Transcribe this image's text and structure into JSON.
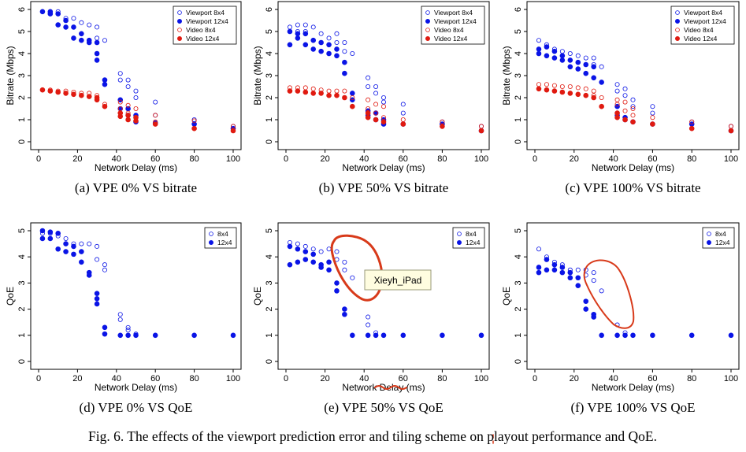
{
  "figure_caption": "Fig. 6.  The effects of the viewport prediction error and tiling scheme on playout performance and QoE.",
  "annotation_note": "Xieyh_iPad",
  "colors": {
    "viewport": "#0a14e6",
    "video": "#e01a10",
    "ink": "#d83a1a",
    "note_fill": "#fffde0"
  },
  "chart_data": [
    {
      "type": "scatter",
      "caption": "(a) VPE 0% VS bitrate",
      "xlabel": "Network Delay (ms)",
      "ylabel": "Bitrate (Mbps)",
      "xlim": [
        0,
        100
      ],
      "ylim": [
        0,
        6
      ],
      "xticks": [
        0,
        20,
        40,
        60,
        80,
        100
      ],
      "yticks": [
        0,
        1,
        2,
        3,
        4,
        5,
        6
      ],
      "legend_position": "top-right",
      "series": [
        {
          "name": "Viewport 8x4",
          "marker": "open",
          "color": "viewport",
          "x": [
            2,
            6,
            10,
            14,
            18,
            22,
            26,
            30,
            30,
            34,
            42,
            42,
            46,
            46,
            50,
            50,
            60,
            60,
            80,
            100
          ],
          "y": [
            5.9,
            5.85,
            5.9,
            5.6,
            5.6,
            5.4,
            5.3,
            5.2,
            4.7,
            4.6,
            3.1,
            2.8,
            2.8,
            2.5,
            2.3,
            2.0,
            1.8,
            1.2,
            1.0,
            0.7
          ]
        },
        {
          "name": "Viewport 12x4",
          "marker": "filled",
          "color": "viewport",
          "x": [
            2,
            6,
            6,
            10,
            10,
            14,
            14,
            18,
            18,
            22,
            22,
            26,
            26,
            30,
            30,
            30,
            34,
            34,
            42,
            42,
            46,
            46,
            50,
            50,
            60,
            80,
            100
          ],
          "y": [
            5.9,
            5.9,
            5.8,
            5.8,
            5.3,
            5.5,
            5.2,
            5.2,
            4.7,
            4.9,
            4.6,
            4.6,
            4.5,
            4.5,
            4.0,
            3.7,
            2.8,
            2.6,
            1.9,
            1.5,
            1.5,
            1.2,
            1.2,
            0.9,
            0.85,
            0.8,
            0.6
          ]
        },
        {
          "name": "Video 8x4",
          "marker": "open",
          "color": "video",
          "x": [
            2,
            6,
            10,
            14,
            18,
            22,
            26,
            30,
            30,
            34,
            42,
            42,
            46,
            46,
            50,
            50,
            60,
            60,
            80,
            100
          ],
          "y": [
            2.35,
            2.35,
            2.3,
            2.3,
            2.25,
            2.2,
            2.2,
            2.1,
            2.0,
            1.7,
            1.8,
            1.5,
            1.65,
            1.3,
            1.5,
            1.1,
            1.2,
            0.9,
            0.95,
            0.7
          ]
        },
        {
          "name": "Video 12x4",
          "marker": "filled",
          "color": "video",
          "x": [
            2,
            6,
            10,
            14,
            18,
            22,
            26,
            30,
            30,
            34,
            42,
            42,
            46,
            46,
            50,
            50,
            60,
            80,
            100
          ],
          "y": [
            2.35,
            2.3,
            2.25,
            2.2,
            2.15,
            2.1,
            2.05,
            2.0,
            1.9,
            1.6,
            1.3,
            1.15,
            1.2,
            1.0,
            1.1,
            0.95,
            0.8,
            0.6,
            0.5
          ]
        }
      ]
    },
    {
      "type": "scatter",
      "caption": "(b) VPE 50% VS bitrate",
      "xlabel": "Network Delay (ms)",
      "ylabel": "Bitrate (Mbps)",
      "xlim": [
        0,
        100
      ],
      "ylim": [
        0,
        6
      ],
      "xticks": [
        0,
        20,
        40,
        60,
        80,
        100
      ],
      "yticks": [
        0,
        1,
        2,
        3,
        4,
        5,
        6
      ],
      "legend_position": "top-right",
      "series": [
        {
          "name": "Viewport 8x4",
          "marker": "open",
          "color": "viewport",
          "x": [
            2,
            6,
            6,
            10,
            10,
            14,
            18,
            22,
            26,
            26,
            30,
            30,
            34,
            42,
            42,
            46,
            46,
            50,
            50,
            60,
            60,
            80,
            100
          ],
          "y": [
            5.2,
            5.3,
            5.0,
            5.3,
            5.0,
            5.2,
            4.9,
            4.7,
            4.9,
            4.5,
            4.5,
            4.1,
            4.0,
            2.9,
            2.5,
            2.5,
            2.2,
            2.0,
            1.8,
            1.7,
            1.3,
            0.9,
            0.7
          ]
        },
        {
          "name": "Viewport 12x4",
          "marker": "filled",
          "color": "viewport",
          "x": [
            2,
            2,
            6,
            6,
            10,
            10,
            14,
            14,
            18,
            18,
            22,
            22,
            26,
            26,
            30,
            30,
            34,
            34,
            42,
            42,
            46,
            46,
            50,
            50,
            60,
            80,
            100
          ],
          "y": [
            5.0,
            4.4,
            4.9,
            4.7,
            4.9,
            4.4,
            4.6,
            4.2,
            4.5,
            4.1,
            4.4,
            4.0,
            4.2,
            3.9,
            3.6,
            3.1,
            2.2,
            1.9,
            1.4,
            1.2,
            1.3,
            1.0,
            1.0,
            0.8,
            0.8,
            0.8,
            0.5
          ]
        },
        {
          "name": "Video 8x4",
          "marker": "open",
          "color": "video",
          "x": [
            2,
            6,
            10,
            14,
            18,
            22,
            26,
            30,
            34,
            42,
            42,
            46,
            46,
            50,
            50,
            60,
            80,
            100
          ],
          "y": [
            2.45,
            2.45,
            2.45,
            2.4,
            2.35,
            2.3,
            2.3,
            2.3,
            2.0,
            1.9,
            1.5,
            1.7,
            1.3,
            1.6,
            1.1,
            1.0,
            0.9,
            0.7
          ]
        },
        {
          "name": "Video 12x4",
          "marker": "filled",
          "color": "video",
          "x": [
            2,
            6,
            10,
            14,
            18,
            22,
            26,
            30,
            34,
            42,
            42,
            46,
            50,
            60,
            80,
            100
          ],
          "y": [
            2.3,
            2.3,
            2.25,
            2.2,
            2.2,
            2.1,
            2.1,
            2.0,
            1.6,
            1.3,
            1.1,
            1.0,
            0.9,
            0.8,
            0.7,
            0.5
          ]
        }
      ]
    },
    {
      "type": "scatter",
      "caption": "(c) VPE 100% VS bitrate",
      "xlabel": "Network Delay (ms)",
      "ylabel": "Bitrate (Mbps)",
      "xlim": [
        0,
        100
      ],
      "ylim": [
        0,
        6
      ],
      "xticks": [
        0,
        20,
        40,
        60,
        80,
        100
      ],
      "yticks": [
        0,
        1,
        2,
        3,
        4,
        5,
        6
      ],
      "legend_position": "top-right",
      "series": [
        {
          "name": "Viewport 8x4",
          "marker": "open",
          "color": "viewport",
          "x": [
            2,
            6,
            10,
            14,
            18,
            22,
            26,
            30,
            30,
            34,
            42,
            42,
            46,
            46,
            50,
            50,
            60,
            60,
            80,
            100
          ],
          "y": [
            4.6,
            4.4,
            4.2,
            4.1,
            4.0,
            3.9,
            3.8,
            3.8,
            3.5,
            3.4,
            2.6,
            2.3,
            2.4,
            2.1,
            1.9,
            1.6,
            1.6,
            1.3,
            0.9,
            0.7
          ]
        },
        {
          "name": "Viewport 12x4",
          "marker": "filled",
          "color": "viewport",
          "x": [
            2,
            2,
            6,
            6,
            10,
            10,
            14,
            14,
            18,
            18,
            22,
            22,
            26,
            26,
            30,
            30,
            34,
            42,
            42,
            46,
            46,
            50,
            60,
            80,
            100
          ],
          "y": [
            4.2,
            4.0,
            4.3,
            3.9,
            4.1,
            3.8,
            3.9,
            3.7,
            3.7,
            3.4,
            3.6,
            3.3,
            3.5,
            3.1,
            3.4,
            2.9,
            2.7,
            1.6,
            1.2,
            1.1,
            1.0,
            0.9,
            0.8,
            0.8,
            0.5
          ]
        },
        {
          "name": "Video 8x4",
          "marker": "open",
          "color": "video",
          "x": [
            2,
            6,
            10,
            14,
            18,
            22,
            26,
            30,
            30,
            34,
            42,
            42,
            46,
            46,
            50,
            50,
            60,
            80,
            100
          ],
          "y": [
            2.6,
            2.6,
            2.55,
            2.5,
            2.5,
            2.45,
            2.4,
            2.3,
            2.1,
            2.0,
            1.9,
            1.7,
            1.8,
            1.4,
            1.5,
            1.2,
            1.1,
            0.9,
            0.7
          ]
        },
        {
          "name": "Video 12x4",
          "marker": "filled",
          "color": "video",
          "x": [
            2,
            6,
            10,
            14,
            18,
            22,
            26,
            30,
            34,
            42,
            42,
            46,
            50,
            60,
            80,
            100
          ],
          "y": [
            2.4,
            2.35,
            2.3,
            2.25,
            2.2,
            2.15,
            2.1,
            2.0,
            1.6,
            1.3,
            1.1,
            1.0,
            0.9,
            0.8,
            0.6,
            0.5
          ]
        }
      ]
    },
    {
      "type": "scatter",
      "caption": "(d) VPE 0% VS QoE",
      "xlabel": "Network Delay (ms)",
      "ylabel": "QoE",
      "xlim": [
        0,
        100
      ],
      "ylim": [
        0,
        5
      ],
      "xticks": [
        0,
        20,
        40,
        60,
        80,
        100
      ],
      "yticks": [
        0,
        1,
        2,
        3,
        4,
        5
      ],
      "legend_position": "top-right",
      "series": [
        {
          "name": "8x4",
          "marker": "open",
          "color": "viewport",
          "x": [
            2,
            6,
            10,
            14,
            18,
            22,
            26,
            30,
            30,
            34,
            34,
            42,
            42,
            46,
            46,
            50,
            60,
            80,
            100
          ],
          "y": [
            4.9,
            4.9,
            4.8,
            4.7,
            4.5,
            4.5,
            4.5,
            4.4,
            3.9,
            3.7,
            3.5,
            1.8,
            1.6,
            1.3,
            1.2,
            1.05,
            1.0,
            1.0,
            1.0
          ]
        },
        {
          "name": "12x4",
          "marker": "filled",
          "color": "viewport",
          "x": [
            2,
            2,
            6,
            6,
            10,
            10,
            14,
            14,
            18,
            18,
            22,
            22,
            26,
            26,
            30,
            30,
            30,
            34,
            34,
            42,
            46,
            50,
            60,
            80,
            100
          ],
          "y": [
            5.0,
            4.7,
            4.95,
            4.7,
            4.9,
            4.3,
            4.5,
            4.2,
            4.4,
            4.1,
            4.2,
            3.8,
            3.4,
            3.3,
            2.6,
            2.4,
            2.2,
            1.3,
            1.05,
            1.0,
            1.0,
            1.0,
            1.0,
            1.0,
            1.0
          ]
        }
      ]
    },
    {
      "type": "scatter",
      "caption": "(e) VPE 50% VS QoE",
      "xlabel": "Network Delay (ms)",
      "ylabel": "QoE",
      "xlim": [
        0,
        100
      ],
      "ylim": [
        0,
        5
      ],
      "xticks": [
        0,
        20,
        40,
        60,
        80,
        100
      ],
      "yticks": [
        0,
        1,
        2,
        3,
        4,
        5
      ],
      "legend_position": "top-right",
      "series": [
        {
          "name": "8x4",
          "marker": "open",
          "color": "viewport",
          "x": [
            2,
            6,
            10,
            14,
            18,
            22,
            26,
            26,
            30,
            30,
            34,
            42,
            42,
            46,
            50,
            60,
            80,
            100
          ],
          "y": [
            4.55,
            4.5,
            4.4,
            4.3,
            4.2,
            4.3,
            4.2,
            3.9,
            3.8,
            3.5,
            3.2,
            1.7,
            1.4,
            1.1,
            1.0,
            1.0,
            1.0,
            1.0
          ]
        },
        {
          "name": "12x4",
          "marker": "filled",
          "color": "viewport",
          "x": [
            2,
            2,
            6,
            6,
            10,
            10,
            14,
            14,
            18,
            18,
            22,
            22,
            26,
            26,
            30,
            30,
            34,
            42,
            46,
            50,
            60,
            80,
            100
          ],
          "y": [
            4.4,
            3.7,
            4.3,
            3.8,
            4.2,
            3.9,
            4.1,
            3.8,
            3.7,
            3.6,
            3.8,
            3.5,
            3.0,
            2.7,
            2.0,
            1.8,
            1.0,
            1.0,
            1.0,
            1.0,
            1.0,
            1.0,
            1.0
          ]
        }
      ]
    },
    {
      "type": "scatter",
      "caption": "(f) VPE 100% VS QoE",
      "xlabel": "Network Delay (ms)",
      "ylabel": "QoE",
      "xlim": [
        0,
        100
      ],
      "ylim": [
        0,
        5
      ],
      "xticks": [
        0,
        20,
        40,
        60,
        80,
        100
      ],
      "yticks": [
        0,
        1,
        2,
        3,
        4,
        5
      ],
      "legend_position": "top-right",
      "series": [
        {
          "name": "8x4",
          "marker": "open",
          "color": "viewport",
          "x": [
            2,
            6,
            10,
            14,
            18,
            22,
            26,
            26,
            30,
            30,
            34,
            42,
            46,
            50,
            60,
            80,
            100
          ],
          "y": [
            4.3,
            4.0,
            3.8,
            3.7,
            3.5,
            3.5,
            3.5,
            3.3,
            3.4,
            3.1,
            2.7,
            1.4,
            1.1,
            1.0,
            1.0,
            1.0,
            1.0
          ]
        },
        {
          "name": "12x4",
          "marker": "filled",
          "color": "viewport",
          "x": [
            2,
            2,
            6,
            6,
            10,
            10,
            14,
            14,
            18,
            18,
            22,
            22,
            26,
            26,
            30,
            30,
            34,
            42,
            46,
            50,
            60,
            80,
            100
          ],
          "y": [
            3.6,
            3.4,
            3.9,
            3.5,
            3.7,
            3.5,
            3.6,
            3.4,
            3.4,
            3.2,
            3.2,
            2.9,
            2.3,
            2.0,
            1.8,
            1.7,
            1.0,
            1.0,
            1.0,
            1.0,
            1.0,
            1.0,
            1.0
          ]
        }
      ]
    }
  ]
}
